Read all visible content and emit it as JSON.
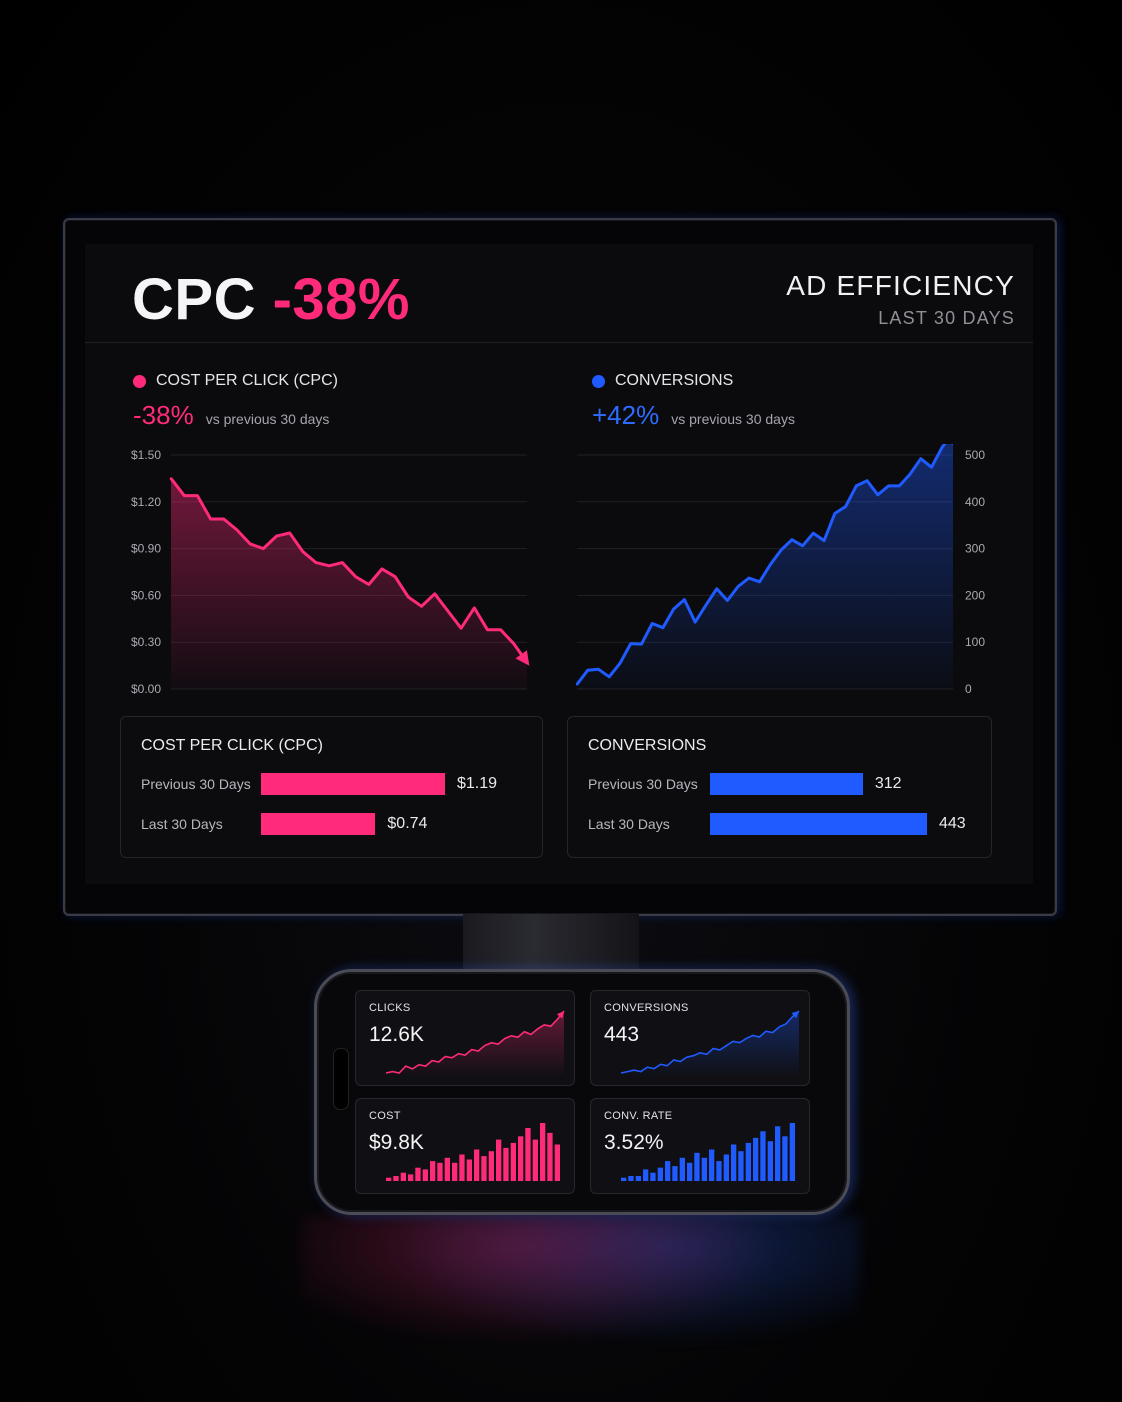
{
  "dashboard": {
    "headline_metric": "CPC",
    "headline_change": "-38%",
    "title": "AD EFFICIENCY",
    "period": "LAST 30 DAYS"
  },
  "colors": {
    "pink": "#ff2a7a",
    "blue": "#1f5bff"
  },
  "cpc_section": {
    "legend": "COST PER CLICK (CPC)",
    "change": "-38%",
    "comparison": "vs previous 30 days"
  },
  "conversions_section": {
    "legend": "CONVERSIONS",
    "change": "+42%",
    "comparison": "vs previous 30 days"
  },
  "chart_data": [
    {
      "type": "area",
      "series": [
        {
          "values": [
            1.35,
            1.24,
            1.24,
            1.09,
            1.09,
            1.02,
            0.93,
            0.9,
            0.98,
            1.0,
            0.88,
            0.81,
            0.79,
            0.81,
            0.72,
            0.67,
            0.77,
            0.72,
            0.59,
            0.53,
            0.61,
            0.5,
            0.39,
            0.52,
            0.38,
            0.38,
            0.29,
            0.17
          ]
        }
      ],
      "yticks": [
        "$1.50",
        "$1.20",
        "$0.90",
        "$0.60",
        "$0.30",
        "$0.00"
      ],
      "ylim": [
        0,
        1.5
      ],
      "grid": true
    },
    {
      "type": "area",
      "series": [
        {
          "values": [
            10,
            40,
            42,
            26,
            55,
            97,
            96,
            140,
            131,
            171,
            191,
            143,
            179,
            214,
            189,
            219,
            237,
            229,
            266,
            297,
            319,
            306,
            333,
            317,
            375,
            390,
            434,
            445,
            415,
            434,
            434,
            459,
            492,
            474,
            517,
            547
          ]
        }
      ],
      "yticks": [
        "500",
        "400",
        "300",
        "200",
        "100",
        "0"
      ],
      "ylim": [
        0,
        500
      ],
      "grid": true
    },
    {
      "type": "bar",
      "title": "COST PER CLICK (CPC)",
      "categories": [
        "Previous 30 Days",
        "Last 30 Days"
      ],
      "values": [
        1.19,
        0.74
      ],
      "labels": [
        "$1.19",
        "$0.74"
      ]
    },
    {
      "type": "bar",
      "title": "CONVERSIONS",
      "categories": [
        "Previous 30 Days",
        "Last 30 Days"
      ],
      "values": [
        312,
        443
      ],
      "labels": [
        "312",
        "443"
      ]
    },
    {
      "type": "line",
      "title": "CLICKS",
      "series": [
        {
          "values": [
            3,
            4,
            3,
            8,
            6,
            9,
            8,
            12,
            11,
            15,
            14,
            17,
            16,
            20,
            19,
            23,
            25,
            24,
            28,
            30,
            29,
            33,
            31,
            35,
            38,
            37,
            42,
            48
          ]
        }
      ]
    },
    {
      "type": "line",
      "title": "CONVERSIONS",
      "series": [
        {
          "values": [
            2,
            3,
            4,
            3,
            6,
            5,
            8,
            7,
            11,
            10,
            13,
            14,
            16,
            15,
            19,
            18,
            21,
            24,
            23,
            26,
            28,
            27,
            31,
            30,
            34,
            36,
            41,
            45
          ]
        }
      ]
    },
    {
      "type": "bar",
      "title": "COST",
      "values": [
        2,
        3,
        5,
        4,
        8,
        7,
        12,
        11,
        14,
        11,
        16,
        13,
        19,
        15,
        18,
        25,
        20,
        23,
        27,
        32,
        25,
        35,
        29,
        22
      ]
    },
    {
      "type": "bar",
      "title": "CONV. RATE",
      "values": [
        2,
        3,
        3,
        7,
        5,
        8,
        12,
        9,
        14,
        11,
        17,
        14,
        19,
        12,
        16,
        22,
        18,
        23,
        26,
        30,
        24,
        33,
        27,
        35
      ]
    }
  ],
  "phone": {
    "tiles": [
      {
        "label": "CLICKS",
        "value": "12.6K"
      },
      {
        "label": "CONVERSIONS",
        "value": "443"
      },
      {
        "label": "COST",
        "value": "$9.8K"
      },
      {
        "label": "CONV. RATE",
        "value": "3.52%"
      }
    ]
  }
}
